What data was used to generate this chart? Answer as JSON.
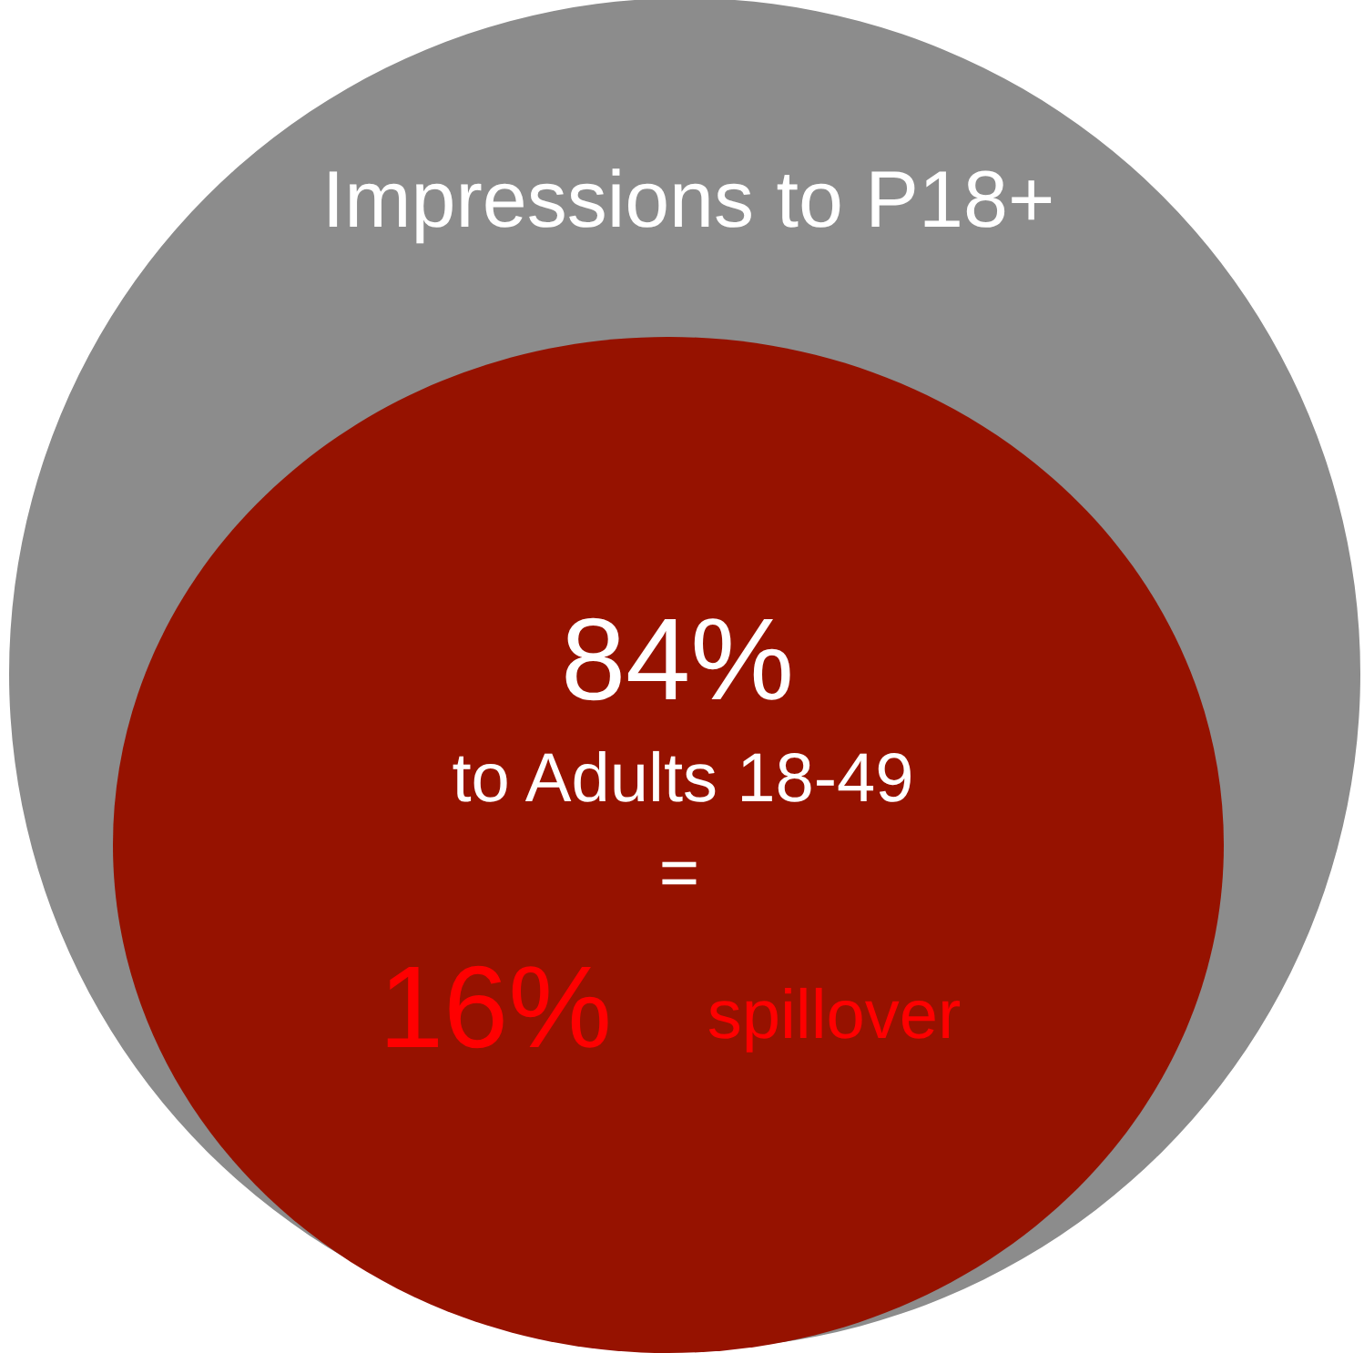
{
  "chart_data": {
    "type": "other",
    "title": "Impressions to P18+",
    "color": "#8c8c8c",
    "categories": [
      "to Adults 18-49",
      "spillover"
    ],
    "values": [
      84,
      16
    ],
    "value_labels": [
      "84%",
      "16%"
    ],
    "colors": [
      "#961200",
      "#ff0000"
    ],
    "annotations": [
      "="
    ]
  }
}
